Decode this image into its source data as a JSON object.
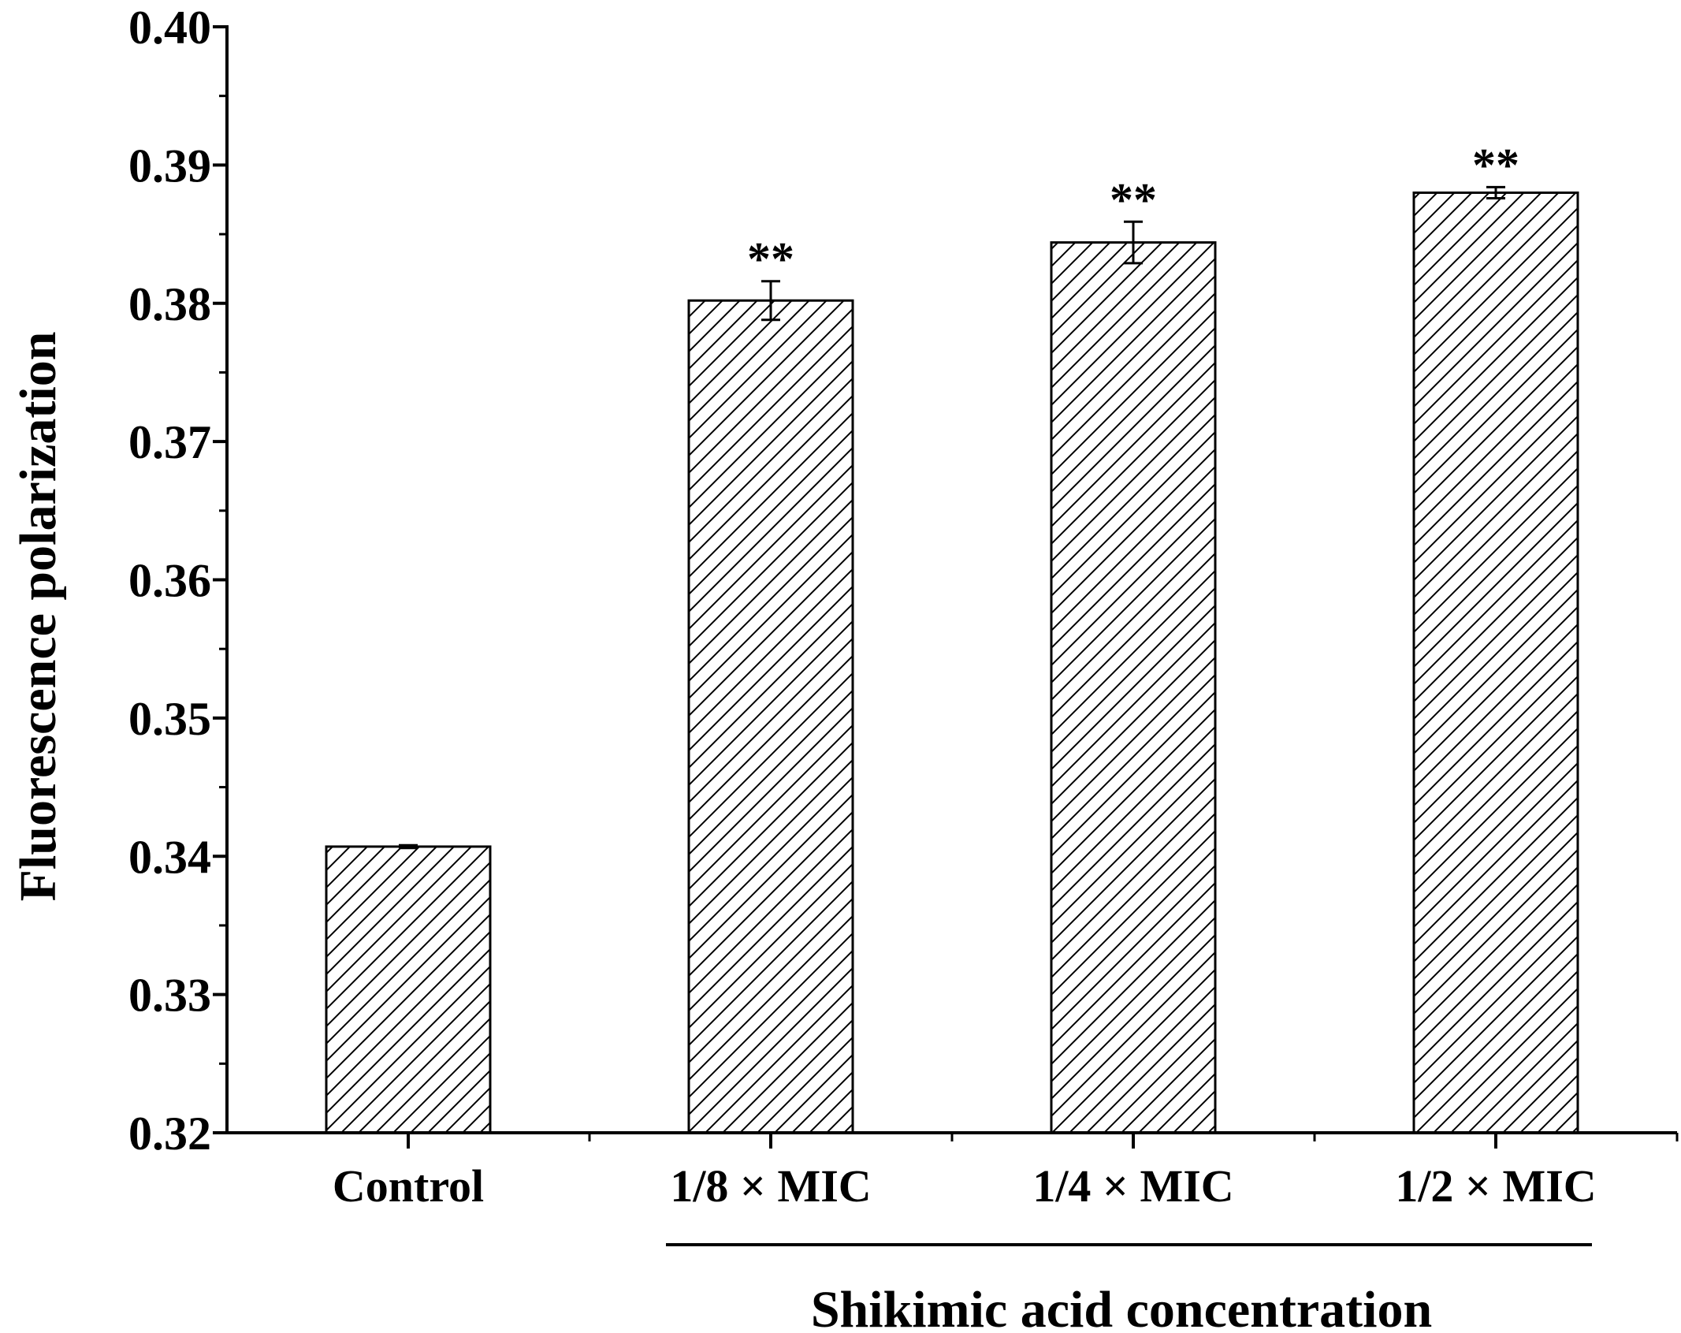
{
  "chart_data": {
    "type": "bar",
    "title": "",
    "xlabel": "Shikimic acid concentration",
    "ylabel": "Fluorescence polarization",
    "categories": [
      "Control",
      "1/8 × MIC",
      "1/4 × MIC",
      "1/2 × MIC"
    ],
    "values": [
      0.3407,
      0.3802,
      0.3844,
      0.388
    ],
    "errors": [
      0.0001,
      0.0014,
      0.0015,
      0.0004
    ],
    "significance": [
      "",
      "**",
      "**",
      "**"
    ],
    "ylim": [
      0.32,
      0.4
    ],
    "yticks": [
      0.32,
      0.33,
      0.34,
      0.35,
      0.36,
      0.37,
      0.38,
      0.39,
      0.4
    ],
    "ytick_labels": [
      "0.32",
      "0.33",
      "0.34",
      "0.35",
      "0.36",
      "0.37",
      "0.38",
      "0.39",
      "0.40"
    ],
    "grid": false,
    "legend": "none",
    "bar_pattern": "diagonal-hatch",
    "colors": {
      "axis": "#000000",
      "bar_fill": "#ffffff",
      "hatch": "#000000"
    }
  }
}
